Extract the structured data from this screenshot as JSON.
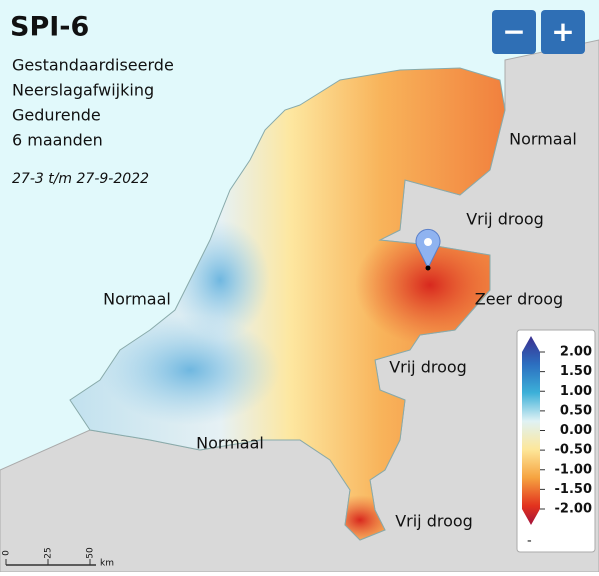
{
  "header": {
    "title": "SPI-6",
    "subtitle_lines": [
      "Gestandaardiseerde",
      "Neerslagafwijking",
      "Gedurende",
      "6 maanden"
    ],
    "period": "27-3 t/m 27-9-2022"
  },
  "zoom": {
    "buttons": [
      "−",
      "+"
    ]
  },
  "map": {
    "labels": [
      "Normaal",
      "Vrij droog",
      "Zeer droog",
      "Normaal",
      "Vrij droog",
      "Normaal",
      "Vrij droog"
    ]
  },
  "legend": {
    "ticks": [
      {
        "value": 2,
        "label": "2.00"
      },
      {
        "value": 1.5,
        "label": "1.50"
      },
      {
        "value": 1,
        "label": "1.00"
      },
      {
        "value": 0.5,
        "label": "0.50"
      },
      {
        "value": 0,
        "label": "0.00"
      },
      {
        "value": -0.5,
        "label": "-0.50"
      },
      {
        "value": -1,
        "label": "-1.00"
      },
      {
        "value": -1.5,
        "label": "-1.50"
      },
      {
        "value": -2,
        "label": "-2.00"
      }
    ],
    "no_data": "-"
  },
  "scale": {
    "ticks": [
      0,
      25,
      50
    ],
    "unit": "km"
  }
}
